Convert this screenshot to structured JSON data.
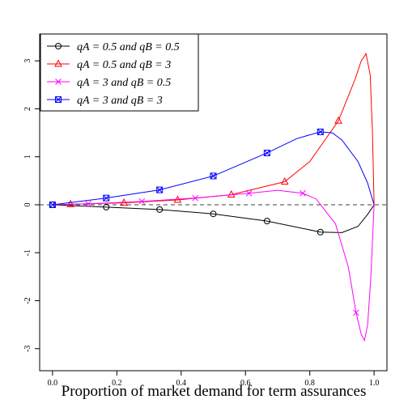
{
  "chart_data": {
    "type": "line",
    "x_label": "Proportion of market demand for term assurances",
    "xlim": [
      -0.04,
      1.04
    ],
    "ylim": [
      -3.46,
      3.56
    ],
    "xticks": [
      {
        "value": 0,
        "label": "0.0"
      },
      {
        "value": 0.2,
        "label": "0.2"
      },
      {
        "value": 0.4,
        "label": "0.4"
      },
      {
        "value": 0.6,
        "label": "0.6"
      },
      {
        "value": 0.8,
        "label": "0.8"
      },
      {
        "value": 1,
        "label": "1.0"
      }
    ],
    "yticks": [
      -3,
      -2,
      -1,
      0,
      1,
      2,
      3
    ],
    "reference_line": 0,
    "legend": "top-left",
    "series": [
      {
        "name": "qA = 0.5 and qB = 0.5",
        "color": "#000000",
        "marker": "circle",
        "x": [
          0,
          0.167,
          0.333,
          0.5,
          0.667,
          0.833,
          0.9,
          0.95,
          0.98,
          1
        ],
        "values": [
          0,
          -0.05,
          -0.1,
          -0.19,
          -0.34,
          -0.57,
          -0.58,
          -0.45,
          -0.2,
          0
        ],
        "marker_x": [
          0,
          0.167,
          0.333,
          0.5,
          0.667,
          0.833
        ],
        "marker_values": [
          0,
          -0.05,
          -0.1,
          -0.19,
          -0.34,
          -0.57
        ]
      },
      {
        "name": "qA = 0.5 and qB = 3",
        "color": "#ff0000",
        "marker": "triangle",
        "x": [
          0,
          0.056,
          0.222,
          0.389,
          0.556,
          0.722,
          0.8,
          0.889,
          0.94,
          0.96,
          0.975,
          0.988,
          0.995,
          1
        ],
        "values": [
          0,
          0.01,
          0.04,
          0.1,
          0.21,
          0.48,
          0.9,
          1.75,
          2.6,
          3.0,
          3.15,
          2.7,
          1.5,
          0
        ],
        "marker_x": [
          0.056,
          0.222,
          0.389,
          0.556,
          0.722,
          0.889
        ],
        "marker_values": [
          0.01,
          0.04,
          0.1,
          0.21,
          0.48,
          1.75
        ]
      },
      {
        "name": "qA = 3 and qB = 0.5",
        "color": "#ff00ff",
        "marker": "cross",
        "x": [
          0,
          0.111,
          0.278,
          0.444,
          0.611,
          0.7,
          0.778,
          0.82,
          0.88,
          0.92,
          0.944,
          0.96,
          0.97,
          0.98,
          0.99,
          1
        ],
        "values": [
          0,
          0.02,
          0.07,
          0.14,
          0.24,
          0.3,
          0.24,
          0.12,
          -0.4,
          -1.3,
          -2.25,
          -2.7,
          -2.83,
          -2.5,
          -1.5,
          0
        ],
        "marker_x": [
          0.111,
          0.278,
          0.444,
          0.611,
          0.778,
          0.944
        ],
        "marker_values": [
          0.02,
          0.07,
          0.14,
          0.24,
          0.24,
          -2.25
        ]
      },
      {
        "name": "qA = 3 and qB = 3",
        "color": "#0000ff",
        "marker": "boxcross",
        "x": [
          0,
          0.167,
          0.333,
          0.5,
          0.667,
          0.76,
          0.833,
          0.87,
          0.9,
          0.95,
          0.98,
          1
        ],
        "values": [
          0,
          0.14,
          0.31,
          0.6,
          1.08,
          1.38,
          1.52,
          1.5,
          1.35,
          0.9,
          0.45,
          0
        ],
        "marker_x": [
          0,
          0.167,
          0.333,
          0.5,
          0.667,
          0.833
        ],
        "marker_values": [
          0,
          0.14,
          0.31,
          0.6,
          1.08,
          1.52
        ]
      }
    ]
  }
}
